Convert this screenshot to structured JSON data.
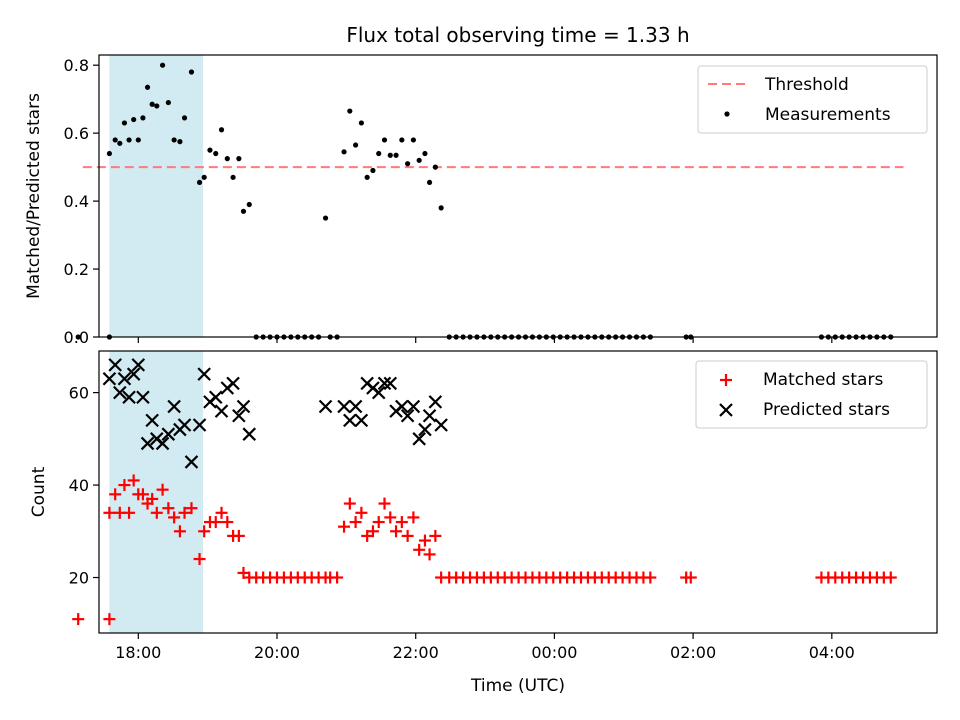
{
  "chart_data": [
    {
      "type": "scatter",
      "title": "Flux total observing time = 1.33 h",
      "xlabel": "",
      "ylabel": "Matched/Predicted stars",
      "xlim": [
        "17:26",
        "05:31"
      ],
      "ylim": [
        0,
        0.83
      ],
      "x_tick_labels": [
        "18:00",
        "20:00",
        "22:00",
        "00:00",
        "02:00",
        "04:00"
      ],
      "yticks": [
        0.0,
        0.2,
        0.4,
        0.6,
        0.8
      ],
      "y_tick_labels": [
        "0.0",
        "0.2",
        "0.4",
        "0.6",
        "0.8"
      ],
      "grid": false,
      "legend_position": "top-right",
      "shaded_span": {
        "start": "17:35",
        "end": "18:56",
        "color": "#add8e6"
      },
      "threshold": {
        "name": "Threshold",
        "y": 0.5,
        "x_start": "17:12",
        "x_end": "05:02",
        "color": "#ff7a7a"
      },
      "series": [
        {
          "name": "Measurements",
          "color": "#000000",
          "points": [
            [
              "17:08",
              0.0
            ],
            [
              "17:35",
              0.0
            ],
            [
              "17:35",
              0.54
            ],
            [
              "17:40",
              0.58
            ],
            [
              "17:44",
              0.57
            ],
            [
              "17:48",
              0.63
            ],
            [
              "17:52",
              0.58
            ],
            [
              "17:56",
              0.64
            ],
            [
              "18:00",
              0.58
            ],
            [
              "18:04",
              0.645
            ],
            [
              "18:08",
              0.735
            ],
            [
              "18:12",
              0.685
            ],
            [
              "18:16",
              0.68
            ],
            [
              "18:21",
              0.8
            ],
            [
              "18:26",
              0.69
            ],
            [
              "18:31",
              0.58
            ],
            [
              "18:36",
              0.575
            ],
            [
              "18:40",
              0.645
            ],
            [
              "18:46",
              0.78
            ],
            [
              "18:53",
              0.455
            ],
            [
              "18:57",
              0.47
            ],
            [
              "19:02",
              0.55
            ],
            [
              "19:07",
              0.54
            ],
            [
              "19:12",
              0.61
            ],
            [
              "19:17",
              0.525
            ],
            [
              "19:22",
              0.47
            ],
            [
              "19:27",
              0.525
            ],
            [
              "19:31",
              0.37
            ],
            [
              "19:36",
              0.39
            ],
            [
              "19:42",
              0.0
            ],
            [
              "19:48",
              0.0
            ],
            [
              "19:54",
              0.0
            ],
            [
              "20:00",
              0.0
            ],
            [
              "20:06",
              0.0
            ],
            [
              "20:12",
              0.0
            ],
            [
              "20:18",
              0.0
            ],
            [
              "20:24",
              0.0
            ],
            [
              "20:30",
              0.0
            ],
            [
              "20:36",
              0.0
            ],
            [
              "20:42",
              0.35
            ],
            [
              "20:46",
              0.0
            ],
            [
              "20:52",
              0.0
            ],
            [
              "20:58",
              0.545
            ],
            [
              "21:03",
              0.665
            ],
            [
              "21:08",
              0.565
            ],
            [
              "21:13",
              0.63
            ],
            [
              "21:18",
              0.47
            ],
            [
              "21:23",
              0.49
            ],
            [
              "21:28",
              0.54
            ],
            [
              "21:33",
              0.58
            ],
            [
              "21:38",
              0.535
            ],
            [
              "21:43",
              0.535
            ],
            [
              "21:48",
              0.58
            ],
            [
              "21:53",
              0.51
            ],
            [
              "21:58",
              0.58
            ],
            [
              "22:03",
              0.52
            ],
            [
              "22:08",
              0.54
            ],
            [
              "22:12",
              0.455
            ],
            [
              "22:17",
              0.5
            ],
            [
              "22:22",
              0.38
            ],
            [
              "22:29",
              0.0
            ],
            [
              "22:35",
              0.0
            ],
            [
              "22:41",
              0.0
            ],
            [
              "22:47",
              0.0
            ],
            [
              "22:53",
              0.0
            ],
            [
              "22:59",
              0.0
            ],
            [
              "23:05",
              0.0
            ],
            [
              "23:11",
              0.0
            ],
            [
              "23:17",
              0.0
            ],
            [
              "23:23",
              0.0
            ],
            [
              "23:29",
              0.0
            ],
            [
              "23:35",
              0.0
            ],
            [
              "23:41",
              0.0
            ],
            [
              "23:47",
              0.0
            ],
            [
              "23:53",
              0.0
            ],
            [
              "23:59",
              0.0
            ],
            [
              "00:05",
              0.0
            ],
            [
              "00:11",
              0.0
            ],
            [
              "00:17",
              0.0
            ],
            [
              "00:23",
              0.0
            ],
            [
              "00:29",
              0.0
            ],
            [
              "00:35",
              0.0
            ],
            [
              "00:41",
              0.0
            ],
            [
              "00:47",
              0.0
            ],
            [
              "00:53",
              0.0
            ],
            [
              "00:59",
              0.0
            ],
            [
              "01:05",
              0.0
            ],
            [
              "01:11",
              0.0
            ],
            [
              "01:17",
              0.0
            ],
            [
              "01:23",
              0.0
            ],
            [
              "01:54",
              0.0
            ],
            [
              "01:58",
              0.0
            ],
            [
              "03:51",
              0.0
            ],
            [
              "03:57",
              0.0
            ],
            [
              "04:03",
              0.0
            ],
            [
              "04:09",
              0.0
            ],
            [
              "04:15",
              0.0
            ],
            [
              "04:21",
              0.0
            ],
            [
              "04:27",
              0.0
            ],
            [
              "04:33",
              0.0
            ],
            [
              "04:39",
              0.0
            ],
            [
              "04:45",
              0.0
            ],
            [
              "04:51",
              0.0
            ]
          ]
        }
      ]
    },
    {
      "type": "scatter",
      "title": "",
      "xlabel": "Time (UTC)",
      "ylabel": "Count",
      "xlim": [
        "17:26",
        "05:31"
      ],
      "ylim": [
        8,
        69
      ],
      "x_tick_labels": [
        "18:00",
        "20:00",
        "22:00",
        "00:00",
        "02:00",
        "04:00"
      ],
      "yticks": [
        20,
        40,
        60
      ],
      "y_tick_labels": [
        "20",
        "40",
        "60"
      ],
      "grid": false,
      "legend_position": "top-right",
      "shaded_span": {
        "start": "17:35",
        "end": "18:56",
        "color": "#add8e6"
      },
      "series": [
        {
          "name": "Matched stars",
          "marker": "plus",
          "color": "#ff0000",
          "points": [
            [
              "17:08",
              11
            ],
            [
              "17:35",
              11
            ],
            [
              "17:35",
              34
            ],
            [
              "17:40",
              38
            ],
            [
              "17:44",
              34
            ],
            [
              "17:48",
              40
            ],
            [
              "17:52",
              34
            ],
            [
              "17:56",
              41
            ],
            [
              "18:00",
              38
            ],
            [
              "18:04",
              38
            ],
            [
              "18:08",
              36
            ],
            [
              "18:12",
              37
            ],
            [
              "18:16",
              34
            ],
            [
              "18:21",
              39
            ],
            [
              "18:26",
              35
            ],
            [
              "18:31",
              33
            ],
            [
              "18:36",
              30
            ],
            [
              "18:40",
              34
            ],
            [
              "18:46",
              35
            ],
            [
              "18:53",
              24
            ],
            [
              "18:57",
              30
            ],
            [
              "19:02",
              32
            ],
            [
              "19:07",
              32
            ],
            [
              "19:12",
              34
            ],
            [
              "19:17",
              32
            ],
            [
              "19:22",
              29
            ],
            [
              "19:27",
              29
            ],
            [
              "19:31",
              21
            ],
            [
              "19:36",
              20
            ],
            [
              "19:42",
              20
            ],
            [
              "19:48",
              20
            ],
            [
              "19:54",
              20
            ],
            [
              "20:00",
              20
            ],
            [
              "20:06",
              20
            ],
            [
              "20:12",
              20
            ],
            [
              "20:18",
              20
            ],
            [
              "20:24",
              20
            ],
            [
              "20:30",
              20
            ],
            [
              "20:36",
              20
            ],
            [
              "20:42",
              20
            ],
            [
              "20:46",
              20
            ],
            [
              "20:52",
              20
            ],
            [
              "20:58",
              31
            ],
            [
              "21:03",
              36
            ],
            [
              "21:08",
              32
            ],
            [
              "21:13",
              34
            ],
            [
              "21:18",
              29
            ],
            [
              "21:23",
              30
            ],
            [
              "21:28",
              32
            ],
            [
              "21:33",
              36
            ],
            [
              "21:38",
              33
            ],
            [
              "21:43",
              30
            ],
            [
              "21:48",
              32
            ],
            [
              "21:53",
              29
            ],
            [
              "21:58",
              33
            ],
            [
              "22:03",
              26
            ],
            [
              "22:08",
              28
            ],
            [
              "22:12",
              25
            ],
            [
              "22:17",
              29
            ],
            [
              "22:22",
              20
            ],
            [
              "22:29",
              20
            ],
            [
              "22:35",
              20
            ],
            [
              "22:41",
              20
            ],
            [
              "22:47",
              20
            ],
            [
              "22:53",
              20
            ],
            [
              "22:59",
              20
            ],
            [
              "23:05",
              20
            ],
            [
              "23:11",
              20
            ],
            [
              "23:17",
              20
            ],
            [
              "23:23",
              20
            ],
            [
              "23:29",
              20
            ],
            [
              "23:35",
              20
            ],
            [
              "23:41",
              20
            ],
            [
              "23:47",
              20
            ],
            [
              "23:53",
              20
            ],
            [
              "23:59",
              20
            ],
            [
              "00:05",
              20
            ],
            [
              "00:11",
              20
            ],
            [
              "00:17",
              20
            ],
            [
              "00:23",
              20
            ],
            [
              "00:29",
              20
            ],
            [
              "00:35",
              20
            ],
            [
              "00:41",
              20
            ],
            [
              "00:47",
              20
            ],
            [
              "00:53",
              20
            ],
            [
              "00:59",
              20
            ],
            [
              "01:05",
              20
            ],
            [
              "01:11",
              20
            ],
            [
              "01:17",
              20
            ],
            [
              "01:23",
              20
            ],
            [
              "01:54",
              20
            ],
            [
              "01:58",
              20
            ],
            [
              "03:51",
              20
            ],
            [
              "03:57",
              20
            ],
            [
              "04:03",
              20
            ],
            [
              "04:09",
              20
            ],
            [
              "04:15",
              20
            ],
            [
              "04:21",
              20
            ],
            [
              "04:27",
              20
            ],
            [
              "04:33",
              20
            ],
            [
              "04:39",
              20
            ],
            [
              "04:45",
              20
            ],
            [
              "04:51",
              20
            ]
          ]
        },
        {
          "name": "Predicted stars",
          "marker": "x",
          "color": "#000000",
          "points": [
            [
              "17:35",
              63
            ],
            [
              "17:40",
              66
            ],
            [
              "17:44",
              60
            ],
            [
              "17:48",
              63
            ],
            [
              "17:52",
              59
            ],
            [
              "17:56",
              64
            ],
            [
              "18:00",
              66
            ],
            [
              "18:04",
              59
            ],
            [
              "18:08",
              49
            ],
            [
              "18:12",
              54
            ],
            [
              "18:16",
              50
            ],
            [
              "18:21",
              49
            ],
            [
              "18:26",
              51
            ],
            [
              "18:31",
              57
            ],
            [
              "18:36",
              52
            ],
            [
              "18:40",
              53
            ],
            [
              "18:46",
              45
            ],
            [
              "18:53",
              53
            ],
            [
              "18:57",
              64
            ],
            [
              "19:02",
              58
            ],
            [
              "19:07",
              59
            ],
            [
              "19:12",
              56
            ],
            [
              "19:17",
              61
            ],
            [
              "19:22",
              62
            ],
            [
              "19:27",
              55
            ],
            [
              "19:31",
              57
            ],
            [
              "19:36",
              51
            ],
            [
              "20:42",
              57
            ],
            [
              "20:58",
              57
            ],
            [
              "21:03",
              54
            ],
            [
              "21:08",
              57
            ],
            [
              "21:13",
              54
            ],
            [
              "21:18",
              62
            ],
            [
              "21:23",
              61
            ],
            [
              "21:28",
              60
            ],
            [
              "21:33",
              62
            ],
            [
              "21:38",
              62
            ],
            [
              "21:43",
              56
            ],
            [
              "21:48",
              57
            ],
            [
              "21:53",
              55
            ],
            [
              "21:58",
              57
            ],
            [
              "22:03",
              50
            ],
            [
              "22:08",
              52
            ],
            [
              "22:12",
              55
            ],
            [
              "22:17",
              58
            ],
            [
              "22:22",
              53
            ]
          ]
        }
      ]
    }
  ]
}
